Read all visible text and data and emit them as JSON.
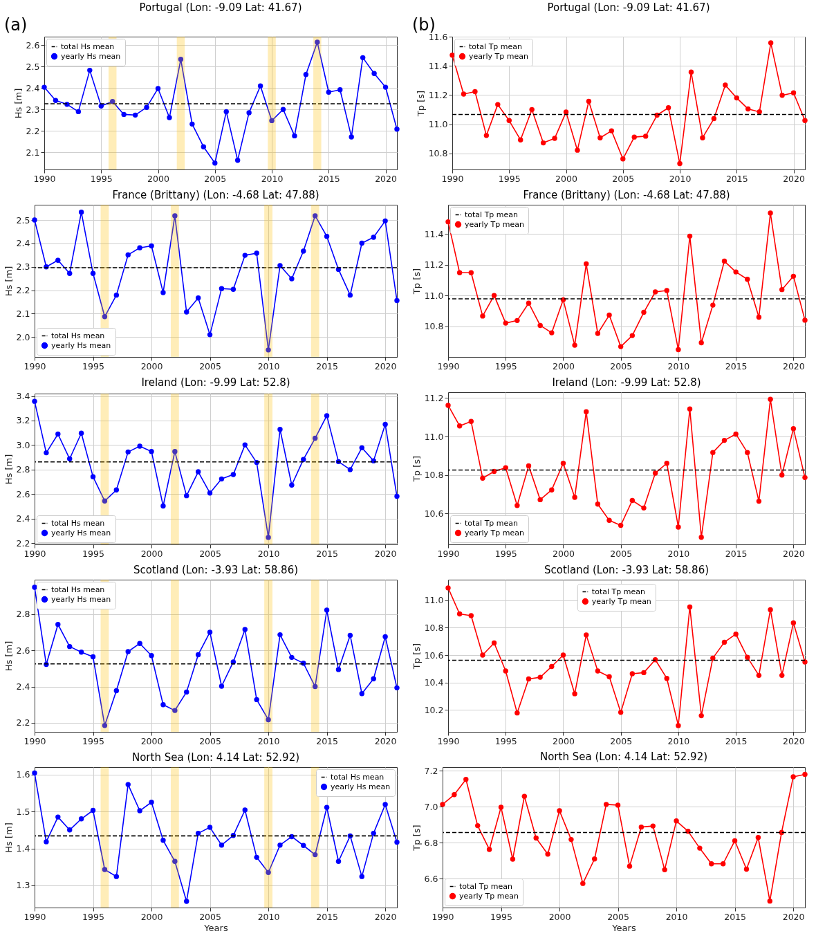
{
  "chart_data": [
    {
      "type": "line",
      "title": "Portugal (Lon: -9.09 Lat: 41.67)",
      "ylabel": "Hs [m]",
      "annotations": [
        "(a)"
      ],
      "x": [
        1990,
        1991,
        1992,
        1993,
        1994,
        1995,
        1996,
        1997,
        1998,
        1999,
        2000,
        2001,
        2002,
        2003,
        2004,
        2005,
        2006,
        2007,
        2008,
        2009,
        2010,
        2011,
        2012,
        2013,
        2014,
        2015,
        2016,
        2017,
        2018,
        2019,
        2020,
        2021
      ],
      "xlim": [
        1990,
        2021
      ],
      "xticks": [
        1990,
        1995,
        2000,
        2005,
        2010,
        2015,
        2020
      ],
      "ylim": [
        2.02,
        2.64
      ],
      "yticks": [
        2.1,
        2.2,
        2.3,
        2.4,
        2.5,
        2.6
      ],
      "grid": true,
      "legend": "top left",
      "bands": [
        {
          "axis": "x",
          "from": 1995.65,
          "to": 1996.35,
          "color": "#ffc000"
        },
        {
          "axis": "x",
          "from": 2001.65,
          "to": 2002.35,
          "color": "#ffc000"
        },
        {
          "axis": "x",
          "from": 2009.65,
          "to": 2010.35,
          "color": "#ffc000"
        },
        {
          "axis": "x",
          "from": 2013.65,
          "to": 2014.35,
          "color": "#ffc000"
        }
      ],
      "ref_lines": [
        {
          "axis": "y",
          "value": 2.327,
          "label": "total Hs mean",
          "color": "#000000",
          "line_style": "dashed"
        }
      ],
      "series": [
        {
          "name": "yearly Hs mean",
          "color": "#0000ff",
          "line_style": "solid",
          "marker": "circle",
          "values": [
            2.404,
            2.342,
            2.324,
            2.29,
            2.483,
            2.316,
            2.337,
            2.277,
            2.274,
            2.31,
            2.398,
            2.262,
            2.534,
            2.232,
            2.126,
            2.05,
            2.29,
            2.063,
            2.285,
            2.41,
            2.248,
            2.3,
            2.177,
            2.463,
            2.614,
            2.381,
            2.392,
            2.172,
            2.542,
            2.468,
            2.404,
            2.208
          ]
        }
      ]
    },
    {
      "type": "line",
      "title": "Portugal (Lon: -9.09 Lat: 41.67)",
      "ylabel": "Tp [s]",
      "annotations": [
        "(b)"
      ],
      "x": [
        1990,
        1991,
        1992,
        1993,
        1994,
        1995,
        1996,
        1997,
        1998,
        1999,
        2000,
        2001,
        2002,
        2003,
        2004,
        2005,
        2006,
        2007,
        2008,
        2009,
        2010,
        2011,
        2012,
        2013,
        2014,
        2015,
        2016,
        2017,
        2018,
        2019,
        2020,
        2021
      ],
      "xlim": [
        1990,
        2021
      ],
      "xticks": [
        1990,
        1995,
        2000,
        2005,
        2010,
        2015,
        2020
      ],
      "ylim": [
        10.69,
        11.6
      ],
      "yticks": [
        10.8,
        {
          "value": 11,
          "label": "11.0"
        },
        11.2,
        11.4,
        11.6
      ],
      "grid": true,
      "legend": "top left",
      "ref_lines": [
        {
          "axis": "y",
          "value": 11.067,
          "label": "total Tp mean",
          "color": "#000000",
          "line_style": "dashed"
        }
      ],
      "series": [
        {
          "name": "yearly Tp mean",
          "color": "#ff0000",
          "line_style": "solid",
          "marker": "circle",
          "values": [
            11.473,
            11.207,
            11.223,
            10.923,
            11.135,
            11.025,
            10.893,
            11.1,
            10.872,
            10.903,
            11.083,
            10.822,
            11.157,
            10.907,
            10.955,
            10.762,
            10.912,
            10.918,
            11.062,
            11.113,
            10.73,
            11.357,
            10.907,
            11.038,
            11.268,
            11.18,
            11.105,
            11.085,
            11.557,
            11.198,
            11.215,
            11.025
          ]
        }
      ]
    },
    {
      "type": "line",
      "title": "France (Brittany) (Lon: -4.68 Lat: 47.88)",
      "ylabel": "Hs [m]",
      "x": [
        1990,
        1991,
        1992,
        1993,
        1994,
        1995,
        1996,
        1997,
        1998,
        1999,
        2000,
        2001,
        2002,
        2003,
        2004,
        2005,
        2006,
        2007,
        2008,
        2009,
        2010,
        2011,
        2012,
        2013,
        2014,
        2015,
        2016,
        2017,
        2018,
        2019,
        2020,
        2021
      ],
      "xlim": [
        1990,
        2021
      ],
      "xticks": [
        1990,
        1995,
        2000,
        2005,
        2010,
        2015,
        2020
      ],
      "ylim": [
        1.915,
        2.565
      ],
      "yticks": [
        {
          "value": 2,
          "label": "2.0"
        },
        2.1,
        2.2,
        2.3,
        2.4,
        2.5
      ],
      "grid": true,
      "legend": "bottom left",
      "bands": [
        {
          "axis": "x",
          "from": 1995.65,
          "to": 1996.35,
          "color": "#ffc000"
        },
        {
          "axis": "x",
          "from": 2001.65,
          "to": 2002.35,
          "color": "#ffc000"
        },
        {
          "axis": "x",
          "from": 2009.65,
          "to": 2010.35,
          "color": "#ffc000"
        },
        {
          "axis": "x",
          "from": 2013.65,
          "to": 2014.35,
          "color": "#ffc000"
        }
      ],
      "ref_lines": [
        {
          "axis": "y",
          "value": 2.296,
          "label": "total Hs mean",
          "color": "#000000",
          "line_style": "dashed"
        }
      ],
      "series": [
        {
          "name": "yearly Hs mean",
          "color": "#0000ff",
          "line_style": "solid",
          "marker": "circle",
          "values": [
            2.5,
            2.3,
            2.328,
            2.272,
            2.533,
            2.272,
            2.087,
            2.179,
            2.351,
            2.381,
            2.389,
            2.19,
            2.518,
            2.107,
            2.167,
            2.01,
            2.207,
            2.204,
            2.349,
            2.358,
            1.945,
            2.305,
            2.249,
            2.367,
            2.518,
            2.43,
            2.289,
            2.179,
            2.401,
            2.426,
            2.496,
            2.156
          ]
        }
      ]
    },
    {
      "type": "line",
      "title": "France (Brittany) (Lon: -4.68 Lat: 47.88)",
      "ylabel": "Tp [s]",
      "x": [
        1990,
        1991,
        1992,
        1993,
        1994,
        1995,
        1996,
        1997,
        1998,
        1999,
        2000,
        2001,
        2002,
        2003,
        2004,
        2005,
        2006,
        2007,
        2008,
        2009,
        2010,
        2011,
        2012,
        2013,
        2014,
        2015,
        2016,
        2017,
        2018,
        2019,
        2020,
        2021
      ],
      "xlim": [
        1990,
        2021
      ],
      "xticks": [
        1990,
        1995,
        2000,
        2005,
        2010,
        2015,
        2020
      ],
      "ylim": [
        10.6,
        11.59
      ],
      "yticks": [
        10.8,
        {
          "value": 11,
          "label": "11.0"
        },
        11.2,
        11.4
      ],
      "grid": true,
      "legend": "top left",
      "ref_lines": [
        {
          "axis": "y",
          "value": 10.978,
          "label": "total Tp mean",
          "color": "#000000",
          "line_style": "dashed"
        }
      ],
      "series": [
        {
          "name": "yearly Tp mean",
          "color": "#ff0000",
          "line_style": "solid",
          "marker": "circle",
          "values": [
            11.479,
            11.148,
            11.148,
            10.866,
            11.0,
            10.82,
            10.837,
            10.95,
            10.805,
            10.757,
            10.972,
            10.676,
            11.205,
            10.753,
            10.872,
            10.667,
            10.739,
            10.89,
            11.023,
            11.032,
            10.647,
            11.386,
            10.692,
            10.937,
            11.223,
            11.153,
            11.105,
            10.859,
            11.536,
            11.038,
            11.125,
            10.839
          ]
        }
      ]
    },
    {
      "type": "line",
      "title": "Ireland (Lon: -9.99 Lat: 52.8)",
      "ylabel": "Hs [m]",
      "x": [
        1990,
        1991,
        1992,
        1993,
        1994,
        1995,
        1996,
        1997,
        1998,
        1999,
        2000,
        2001,
        2002,
        2003,
        2004,
        2005,
        2006,
        2007,
        2008,
        2009,
        2010,
        2011,
        2012,
        2013,
        2014,
        2015,
        2016,
        2017,
        2018,
        2019,
        2020,
        2021
      ],
      "xlim": [
        1990,
        2021
      ],
      "xticks": [
        1990,
        1995,
        2000,
        2005,
        2010,
        2015,
        2020
      ],
      "ylim": [
        2.19,
        3.42
      ],
      "yticks": [
        2.2,
        2.4,
        2.6,
        2.8,
        {
          "value": 3,
          "label": "3.0"
        },
        3.2,
        3.4
      ],
      "grid": true,
      "legend": "bottom left",
      "bands": [
        {
          "axis": "x",
          "from": 1995.65,
          "to": 1996.35,
          "color": "#ffc000"
        },
        {
          "axis": "x",
          "from": 2001.65,
          "to": 2002.35,
          "color": "#ffc000"
        },
        {
          "axis": "x",
          "from": 2009.65,
          "to": 2010.35,
          "color": "#ffc000"
        },
        {
          "axis": "x",
          "from": 2013.65,
          "to": 2014.35,
          "color": "#ffc000"
        }
      ],
      "ref_lines": [
        {
          "axis": "y",
          "value": 2.863,
          "label": "total Hs mean",
          "color": "#000000",
          "line_style": "dashed"
        }
      ],
      "series": [
        {
          "name": "yearly Hs mean",
          "color": "#0000ff",
          "line_style": "solid",
          "marker": "circle",
          "values": [
            3.357,
            2.937,
            3.09,
            2.888,
            3.097,
            2.742,
            2.544,
            2.634,
            2.944,
            2.991,
            2.948,
            2.503,
            2.948,
            2.587,
            2.782,
            2.609,
            2.724,
            2.76,
            3.002,
            2.858,
            2.247,
            3.128,
            2.674,
            2.883,
            3.056,
            3.24,
            2.865,
            2.8,
            2.978,
            2.872,
            3.169,
            2.582
          ]
        }
      ]
    },
    {
      "type": "line",
      "title": "Ireland (Lon: -9.99 Lat: 52.8)",
      "ylabel": "Tp [s]",
      "x": [
        1990,
        1991,
        1992,
        1993,
        1994,
        1995,
        1996,
        1997,
        1998,
        1999,
        2000,
        2001,
        2002,
        2003,
        2004,
        2005,
        2006,
        2007,
        2008,
        2009,
        2010,
        2011,
        2012,
        2013,
        2014,
        2015,
        2016,
        2017,
        2018,
        2019,
        2020,
        2021
      ],
      "xlim": [
        1990,
        2021
      ],
      "xticks": [
        1990,
        1995,
        2000,
        2005,
        2010,
        2015,
        2020
      ],
      "ylim": [
        10.44,
        11.23
      ],
      "yticks": [
        10.6,
        10.8,
        {
          "value": 11,
          "label": "11.0"
        },
        11.2
      ],
      "grid": true,
      "legend": "bottom left",
      "ref_lines": [
        {
          "axis": "y",
          "value": 10.826,
          "label": "total Tp mean",
          "color": "#000000",
          "line_style": "dashed"
        }
      ],
      "series": [
        {
          "name": "yearly Tp mean",
          "color": "#ff0000",
          "line_style": "solid",
          "marker": "circle",
          "values": [
            11.162,
            11.055,
            11.078,
            10.784,
            10.819,
            10.838,
            10.642,
            10.848,
            10.672,
            10.723,
            10.861,
            10.684,
            11.129,
            10.649,
            10.565,
            10.539,
            10.668,
            10.629,
            10.81,
            10.861,
            10.53,
            11.143,
            10.477,
            10.917,
            10.98,
            11.013,
            10.917,
            10.664,
            11.193,
            10.8,
            11.041,
            10.787
          ]
        }
      ]
    },
    {
      "type": "line",
      "title": "Scotland (Lon: -3.93 Lat: 58.86)",
      "ylabel": "Hs [m]",
      "x": [
        1990,
        1991,
        1992,
        1993,
        1994,
        1995,
        1996,
        1997,
        1998,
        1999,
        2000,
        2001,
        2002,
        2003,
        2004,
        2005,
        2006,
        2007,
        2008,
        2009,
        2010,
        2011,
        2012,
        2013,
        2014,
        2015,
        2016,
        2017,
        2018,
        2019,
        2020,
        2021
      ],
      "xlim": [
        1990,
        2021
      ],
      "xticks": [
        1990,
        1995,
        2000,
        2005,
        2010,
        2015,
        2020
      ],
      "ylim": [
        2.15,
        2.99
      ],
      "yticks": [
        2.2,
        2.4,
        2.6,
        2.8
      ],
      "grid": true,
      "legend": "top left",
      "bands": [
        {
          "axis": "x",
          "from": 1995.65,
          "to": 1996.35,
          "color": "#ffc000"
        },
        {
          "axis": "x",
          "from": 2001.65,
          "to": 2002.35,
          "color": "#ffc000"
        },
        {
          "axis": "x",
          "from": 2009.65,
          "to": 2010.35,
          "color": "#ffc000"
        },
        {
          "axis": "x",
          "from": 2013.65,
          "to": 2014.35,
          "color": "#ffc000"
        }
      ],
      "ref_lines": [
        {
          "axis": "y",
          "value": 2.525,
          "label": "total Hs mean",
          "color": "#000000",
          "line_style": "dashed"
        }
      ],
      "series": [
        {
          "name": "yearly Hs mean",
          "color": "#0000ff",
          "line_style": "solid",
          "marker": "circle",
          "values": [
            2.948,
            2.522,
            2.743,
            2.621,
            2.59,
            2.564,
            2.185,
            2.377,
            2.593,
            2.638,
            2.571,
            2.3,
            2.268,
            2.37,
            2.576,
            2.7,
            2.402,
            2.536,
            2.715,
            2.328,
            2.217,
            2.686,
            2.561,
            2.529,
            2.4,
            2.822,
            2.494,
            2.683,
            2.361,
            2.443,
            2.675,
            2.393
          ]
        }
      ]
    },
    {
      "type": "line",
      "title": "Scotland (Lon: -3.93 Lat: 58.86)",
      "ylabel": "Tp [s]",
      "x": [
        1990,
        1991,
        1992,
        1993,
        1994,
        1995,
        1996,
        1997,
        1998,
        1999,
        2000,
        2001,
        2002,
        2003,
        2004,
        2005,
        2006,
        2007,
        2008,
        2009,
        2010,
        2011,
        2012,
        2013,
        2014,
        2015,
        2016,
        2017,
        2018,
        2019,
        2020,
        2021
      ],
      "xlim": [
        1990,
        2021
      ],
      "xticks": [
        1990,
        1995,
        2000,
        2005,
        2010,
        2015,
        2020
      ],
      "ylim": [
        10.04,
        11.15
      ],
      "yticks": [
        10.2,
        10.4,
        10.6,
        10.8,
        {
          "value": 11,
          "label": "11.0"
        }
      ],
      "grid": true,
      "legend": "top",
      "ref_lines": [
        {
          "axis": "y",
          "value": 10.562,
          "label": "total Tp mean",
          "color": "#000000",
          "line_style": "dashed"
        }
      ],
      "series": [
        {
          "name": "yearly Tp mean",
          "color": "#ff0000",
          "line_style": "solid",
          "marker": "circle",
          "values": [
            11.09,
            10.9,
            10.888,
            10.6,
            10.688,
            10.484,
            10.178,
            10.426,
            10.438,
            10.517,
            10.6,
            10.318,
            10.747,
            10.484,
            10.442,
            10.182,
            10.464,
            10.472,
            10.566,
            10.43,
            10.086,
            10.951,
            10.158,
            10.578,
            10.694,
            10.753,
            10.584,
            10.452,
            10.931,
            10.452,
            10.835,
            10.55
          ]
        }
      ]
    },
    {
      "type": "line",
      "title": "North Sea (Lon: 4.14 Lat: 52.92)",
      "xlabel": "Years",
      "ylabel": "Hs [m]",
      "x": [
        1990,
        1991,
        1992,
        1993,
        1994,
        1995,
        1996,
        1997,
        1998,
        1999,
        2000,
        2001,
        2002,
        2003,
        2004,
        2005,
        2006,
        2007,
        2008,
        2009,
        2010,
        2011,
        2012,
        2013,
        2014,
        2015,
        2016,
        2017,
        2018,
        2019,
        2020,
        2021
      ],
      "xlim": [
        1990,
        2021
      ],
      "xticks": [
        1990,
        1995,
        2000,
        2005,
        2010,
        2015,
        2020
      ],
      "ylim": [
        1.24,
        1.62
      ],
      "yticks": [
        1.3,
        1.4,
        1.5,
        1.6
      ],
      "grid": true,
      "legend": "top right",
      "bands": [
        {
          "axis": "x",
          "from": 1995.65,
          "to": 1996.35,
          "color": "#ffc000"
        },
        {
          "axis": "x",
          "from": 2001.65,
          "to": 2002.35,
          "color": "#ffc000"
        },
        {
          "axis": "x",
          "from": 2009.65,
          "to": 2010.35,
          "color": "#ffc000"
        },
        {
          "axis": "x",
          "from": 2013.65,
          "to": 2014.35,
          "color": "#ffc000"
        }
      ],
      "ref_lines": [
        {
          "axis": "y",
          "value": 1.434,
          "label": "total Hs mean",
          "color": "#000000",
          "line_style": "dashed"
        }
      ],
      "series": [
        {
          "name": "yearly Hs mean",
          "color": "#0000ff",
          "line_style": "solid",
          "marker": "circle",
          "values": [
            1.604,
            1.418,
            1.485,
            1.45,
            1.48,
            1.503,
            1.343,
            1.324,
            1.573,
            1.502,
            1.525,
            1.422,
            1.365,
            1.257,
            1.441,
            1.457,
            1.409,
            1.435,
            1.504,
            1.376,
            1.335,
            1.409,
            1.432,
            1.408,
            1.383,
            1.511,
            1.365,
            1.434,
            1.324,
            1.441,
            1.519,
            1.417
          ]
        }
      ]
    },
    {
      "type": "line",
      "title": "North Sea (Lon: 4.14 Lat: 52.92)",
      "xlabel": "Years",
      "ylabel": "Tp [s]",
      "x": [
        1990,
        1991,
        1992,
        1993,
        1994,
        1995,
        1996,
        1997,
        1998,
        1999,
        2000,
        2001,
        2002,
        2003,
        2004,
        2005,
        2006,
        2007,
        2008,
        2009,
        2010,
        2011,
        2012,
        2013,
        2014,
        2015,
        2016,
        2017,
        2018,
        2019,
        2020,
        2021
      ],
      "xlim": [
        1990,
        2021
      ],
      "xticks": [
        1990,
        1995,
        2000,
        2005,
        2010,
        2015,
        2020
      ],
      "ylim": [
        6.44,
        7.22
      ],
      "yticks": [
        6.6,
        6.8,
        {
          "value": 7,
          "label": "7.0"
        },
        7.2
      ],
      "grid": true,
      "legend": "bottom left",
      "ref_lines": [
        {
          "axis": "y",
          "value": 6.857,
          "label": "total Tp mean",
          "color": "#000000",
          "line_style": "dashed"
        }
      ],
      "series": [
        {
          "name": "yearly Tp mean",
          "color": "#ff0000",
          "line_style": "solid",
          "marker": "circle",
          "values": [
            7.013,
            7.067,
            7.152,
            6.895,
            6.763,
            6.997,
            6.709,
            7.058,
            6.826,
            6.737,
            6.978,
            6.818,
            6.574,
            6.71,
            7.013,
            7.009,
            6.67,
            6.887,
            6.893,
            6.65,
            6.921,
            6.864,
            6.77,
            6.683,
            6.683,
            6.811,
            6.653,
            6.829,
            6.476,
            6.857,
            7.166,
            7.18
          ]
        }
      ]
    }
  ]
}
